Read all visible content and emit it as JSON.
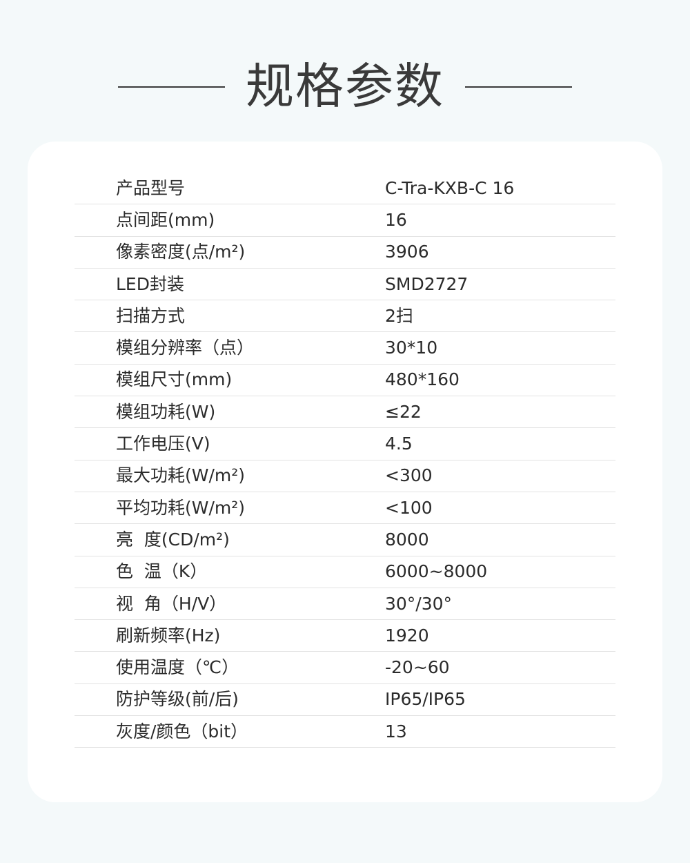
{
  "title": "规格参数",
  "specs": [
    {
      "label": "产品型号",
      "value": "C-Tra-KXB-C 16"
    },
    {
      "label": "点间距(mm)",
      "value": "16"
    },
    {
      "label": "像素密度(点/m²)",
      "value": "3906"
    },
    {
      "label": "LED封装",
      "value": "SMD2727"
    },
    {
      "label": "扫描方式",
      "value": "2扫"
    },
    {
      "label": "模组分辨率（点）",
      "value": "30*10"
    },
    {
      "label": "模组尺寸(mm)",
      "value": "480*160"
    },
    {
      "label": "模组功耗(W)",
      "value": "≤22"
    },
    {
      "label": "工作电压(V)",
      "value": "4.5"
    },
    {
      "label": "最大功耗(W/m²)",
      "value": "<300"
    },
    {
      "label": "平均功耗(W/m²)",
      "value": "<100"
    },
    {
      "label": "亮  度(CD/m²)",
      "value": "8000"
    },
    {
      "label": "色  温（K）",
      "value": "6000~8000"
    },
    {
      "label": "视  角（H/V）",
      "value": "30°/30°"
    },
    {
      "label": "刷新频率(Hz)",
      "value": "1920"
    },
    {
      "label": "使用温度（℃）",
      "value": "-20~60"
    },
    {
      "label": "防护等级(前/后)",
      "value": "IP65/IP65"
    },
    {
      "label": "灰度/颜色（bit）",
      "value": "13"
    }
  ]
}
